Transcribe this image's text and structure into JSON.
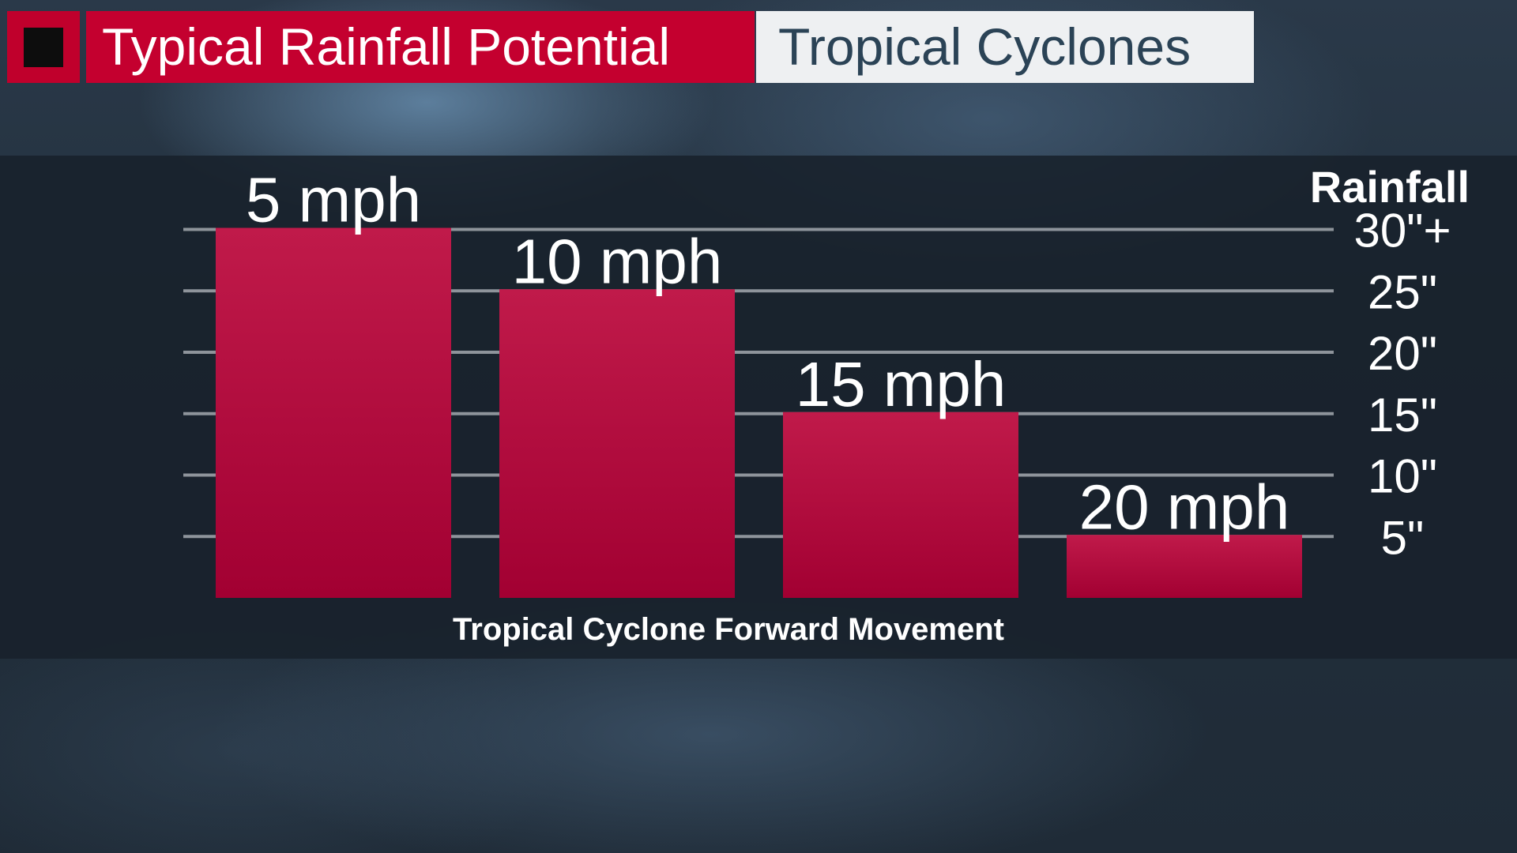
{
  "header": {
    "title_main": "Typical Rainfall Potential",
    "title_secondary": "Tropical Cyclones"
  },
  "colors": {
    "bar": "#b5123f",
    "bar_dark": "#9e0030",
    "grid": "#8e949b",
    "text": "#ffffff",
    "brand_red": "#c4002f"
  },
  "chart_data": {
    "type": "bar",
    "title": "",
    "xlabel": "Tropical Cyclone Forward Movement",
    "ylabel": "Rainfall",
    "categories": [
      "5 mph",
      "10 mph",
      "15 mph",
      "20 mph"
    ],
    "values": [
      30,
      25,
      15,
      5
    ],
    "yticks": [
      "30\"+",
      "25\"",
      "20\"",
      "15\"",
      "10\"",
      "5\""
    ],
    "ytick_values": [
      30,
      25,
      20,
      15,
      10,
      5
    ],
    "ylim": [
      0,
      30
    ],
    "grid": true
  }
}
